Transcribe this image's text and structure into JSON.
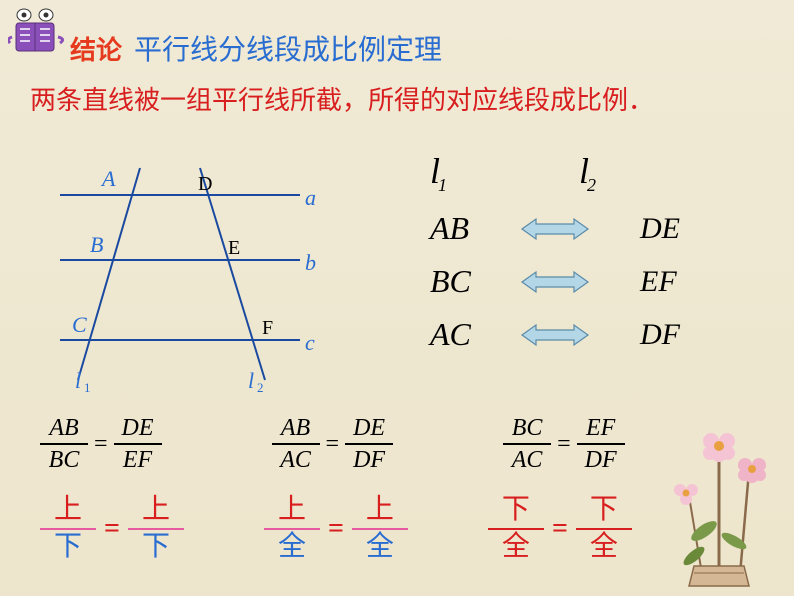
{
  "header": {
    "conclusion": "结论",
    "title": "平行线分线段成比例定理"
  },
  "statement": "两条直线被一组平行线所截，所得的对应线段成比例．",
  "diagram": {
    "points": [
      "A",
      "B",
      "C",
      "D",
      "E",
      "F"
    ],
    "lines": [
      "a",
      "b",
      "c"
    ],
    "transversals": [
      "l₁",
      "l₂"
    ],
    "color_label": "#2a6dd1",
    "color_line": "#1a4aa0"
  },
  "right": {
    "header_l1": "l",
    "header_l1_sub": "1",
    "header_l2": "l",
    "header_l2_sub": "2",
    "rows": [
      {
        "left": "AB",
        "right": "DE"
      },
      {
        "left": "BC",
        "right": "EF"
      },
      {
        "left": "AC",
        "right": "DF"
      }
    ],
    "arrow_fill": "#b4d7e8",
    "arrow_stroke": "#5a8ba8"
  },
  "fractions": [
    {
      "nl": "AB",
      "dl": "BC",
      "nr": "DE",
      "dr": "EF"
    },
    {
      "nl": "AB",
      "dl": "AC",
      "nr": "DE",
      "dr": "DF"
    },
    {
      "nl": "BC",
      "dl": "AC",
      "nr": "EF",
      "dr": "DF"
    }
  ],
  "cn_fractions": [
    {
      "nl": "上",
      "dl": "下",
      "nr": "上",
      "dr": "下",
      "nc": "#d81e1e",
      "dc": "#2a6dd1",
      "br": "pink"
    },
    {
      "nl": "上",
      "dl": "全",
      "nr": "上",
      "dr": "全",
      "nc": "#d81e1e",
      "dc": "#2a6dd1",
      "br": "pink"
    },
    {
      "nl": "下",
      "dl": "全",
      "nr": "下",
      "dr": "全",
      "nc": "#d81e1e",
      "dc": "#d81e1e",
      "br": "red"
    }
  ],
  "eq": "="
}
